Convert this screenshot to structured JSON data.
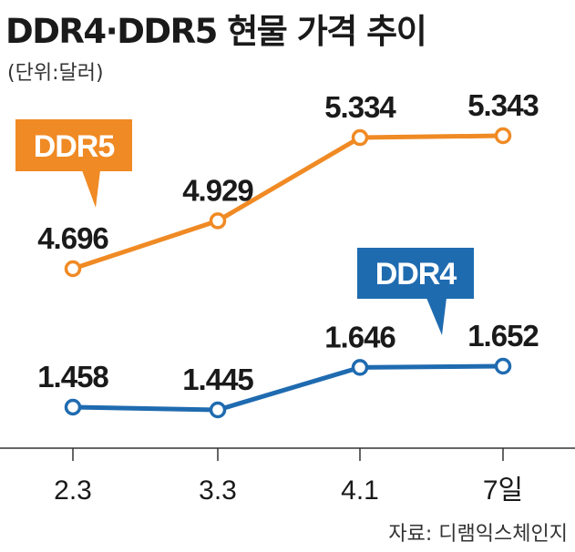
{
  "header": {
    "title": "DDR4·DDR5 현물 가격 추이",
    "unit": "(단위:달러)"
  },
  "footer": {
    "source": "자료: 디램익스체인지"
  },
  "colors": {
    "ddr5": "#F08A24",
    "ddr4": "#1F6BB0",
    "axis": "#333333"
  },
  "chart_data": {
    "type": "line",
    "title": "DDR4·DDR5 현물 가격 추이",
    "xlabel": "",
    "ylabel": "(단위:달러)",
    "categories": [
      "2.3",
      "3.3",
      "4.1",
      "7일"
    ],
    "series": [
      {
        "name": "DDR5",
        "values": [
          4.696,
          4.929,
          5.334,
          5.343
        ],
        "labels": [
          "4.696",
          "4.929",
          "5.334",
          "5.343"
        ]
      },
      {
        "name": "DDR4",
        "values": [
          1.458,
          1.445,
          1.646,
          1.652
        ],
        "labels": [
          "1.458",
          "1.445",
          "1.646",
          "1.652"
        ]
      }
    ],
    "grid": false,
    "legend": "callout-labels"
  }
}
